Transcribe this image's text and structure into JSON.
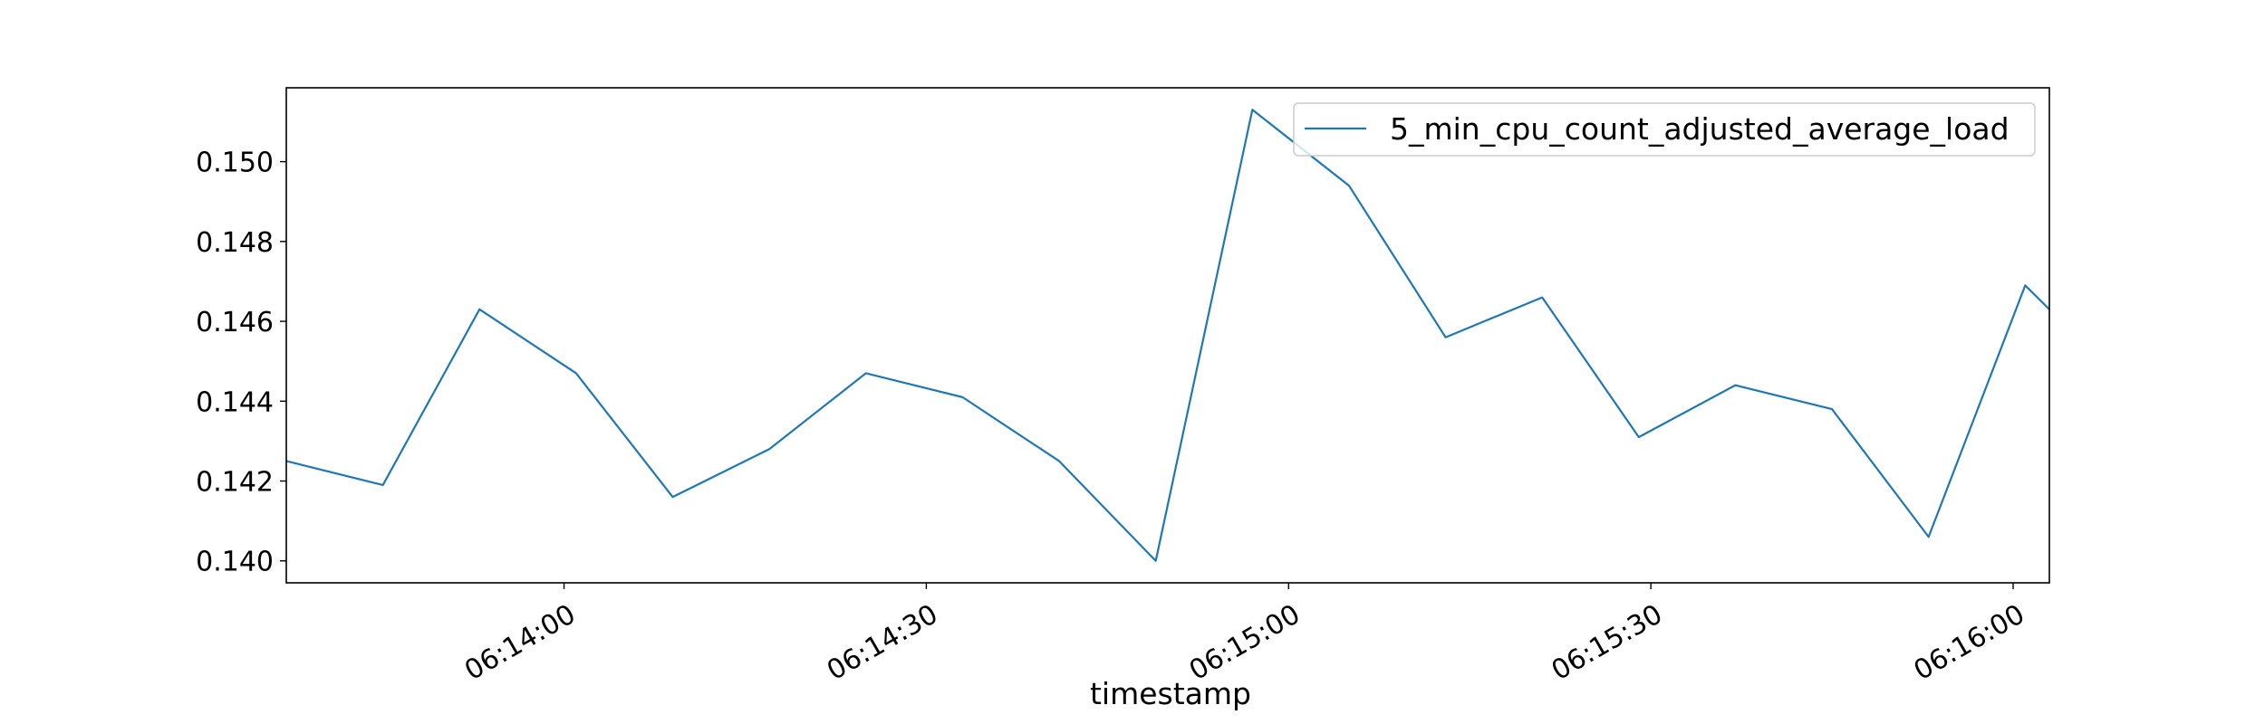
{
  "chart_data": {
    "type": "line",
    "title": "",
    "xlabel": "timestamp",
    "ylabel": "",
    "x": [
      "06:13:37",
      "06:13:45",
      "06:13:53",
      "06:14:01",
      "06:14:09",
      "06:14:17",
      "06:14:25",
      "06:14:33",
      "06:14:41",
      "06:14:49",
      "06:14:57",
      "06:15:05",
      "06:15:13",
      "06:15:21",
      "06:15:29",
      "06:15:37",
      "06:15:45",
      "06:15:53",
      "06:16:01",
      "06:16:03"
    ],
    "series": [
      {
        "name": "5_min_cpu_count_adjusted_average_load",
        "color": "#1f77b4",
        "values": [
          0.1425,
          0.1419,
          0.1463,
          0.1447,
          0.1416,
          0.1428,
          0.1447,
          0.1441,
          0.1425,
          0.14,
          0.1513,
          0.1494,
          0.1456,
          0.1466,
          0.1431,
          0.1444,
          0.1438,
          0.1406,
          0.1469,
          0.1463
        ]
      }
    ],
    "xlim": [
      "06:13:37",
      "06:16:03"
    ],
    "ylim": [
      0.13945,
      0.15185
    ],
    "x_ticks": [
      "06:14:00",
      "06:14:30",
      "06:15:00",
      "06:15:30",
      "06:16:00"
    ],
    "y_ticks": [
      "0.140",
      "0.142",
      "0.144",
      "0.146",
      "0.148",
      "0.150"
    ],
    "legend_position": "top-right",
    "grid": false
  }
}
